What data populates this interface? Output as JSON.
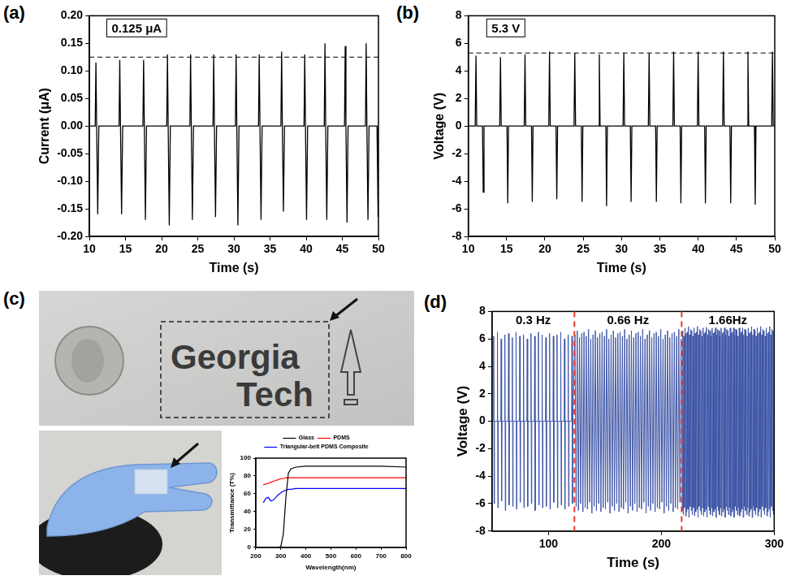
{
  "chart_data": [
    {
      "panel_label": "(a)",
      "type": "line",
      "color": "#000000",
      "x": [
        10,
        10.8,
        10.9,
        11.0,
        11.15,
        11.3,
        14.1,
        14.2,
        14.3,
        14.45,
        14.6,
        17.4,
        17.5,
        17.6,
        17.75,
        17.9,
        20.7,
        20.8,
        20.9,
        21.05,
        21.2,
        23.9,
        24.0,
        24.1,
        24.25,
        24.4,
        27.1,
        27.2,
        27.3,
        27.45,
        27.6,
        30.2,
        30.3,
        30.4,
        30.55,
        30.7,
        33.4,
        33.5,
        33.6,
        33.75,
        33.9,
        36.5,
        36.6,
        36.7,
        36.85,
        37.0,
        39.7,
        39.8,
        39.9,
        40.05,
        40.2,
        42.5,
        42.6,
        42.7,
        42.85,
        43.0,
        45.3,
        45.4,
        45.5,
        45.65,
        45.8,
        48.2,
        48.3,
        48.4,
        48.55,
        48.7,
        49.8,
        49.95,
        50
      ],
      "values": [
        0,
        0,
        0.115,
        0,
        -0.16,
        0,
        0,
        0.12,
        0,
        -0.16,
        0,
        0,
        0.12,
        0,
        -0.17,
        0,
        0,
        0.13,
        0,
        -0.18,
        0,
        0,
        0.13,
        0,
        -0.17,
        0,
        0,
        0.13,
        0,
        -0.165,
        0,
        0,
        0.13,
        0,
        -0.18,
        0,
        0,
        0.13,
        0,
        -0.17,
        0,
        0,
        0.135,
        0,
        -0.155,
        0,
        0,
        0.13,
        0,
        -0.17,
        0,
        0,
        0.15,
        0,
        -0.17,
        0,
        0,
        0.145,
        0,
        -0.175,
        0,
        0,
        0.15,
        0,
        -0.17,
        0,
        0,
        -0.165,
        0
      ],
      "xlim": [
        10,
        50
      ],
      "xticks": [
        10,
        15,
        20,
        25,
        30,
        35,
        40,
        45,
        50
      ],
      "ylim": [
        -0.2,
        0.2
      ],
      "yticks": [
        {
          "value": -0.2,
          "label": "-0.20"
        },
        -0.15,
        {
          "value": -0.1,
          "label": "-0.10"
        },
        -0.05,
        {
          "value": 0,
          "label": "0.00"
        },
        0.05,
        {
          "value": 0.1,
          "label": "0.10"
        },
        0.15,
        {
          "value": 0.2,
          "label": "0.20"
        }
      ],
      "x_label": "Time (s)",
      "y_label": "Current (μA)",
      "reference_line": {
        "value": 0.125,
        "label": "0.125 μA"
      }
    },
    {
      "panel_label": "(b)",
      "type": "line",
      "color": "#000000",
      "x": [
        10,
        10.9,
        11.0,
        11.1,
        11.85,
        11.95,
        12.05,
        14.1,
        14.2,
        14.3,
        15.05,
        15.15,
        15.25,
        17.3,
        17.4,
        17.5,
        18.25,
        18.35,
        18.45,
        20.5,
        20.6,
        20.7,
        21.45,
        21.55,
        21.65,
        23.8,
        23.9,
        24.0,
        24.75,
        24.85,
        24.95,
        27.0,
        27.1,
        27.2,
        27.95,
        28.05,
        28.15,
        30.2,
        30.3,
        30.4,
        31.15,
        31.25,
        31.35,
        33.5,
        33.6,
        33.7,
        34.45,
        34.55,
        34.65,
        36.7,
        36.8,
        36.9,
        37.65,
        37.75,
        37.85,
        39.9,
        40.0,
        40.1,
        40.85,
        40.95,
        41.05,
        43.2,
        43.3,
        43.4,
        44.15,
        44.25,
        44.35,
        46.4,
        46.5,
        46.6,
        47.35,
        47.45,
        47.55,
        49.6,
        49.7,
        49.8,
        50
      ],
      "values": [
        0,
        0,
        5.1,
        0,
        0,
        -4.8,
        0,
        0,
        5.0,
        0,
        0,
        -5.6,
        0,
        0,
        5.2,
        0,
        0,
        -5.5,
        0,
        0,
        5.4,
        0,
        0,
        -5.3,
        0,
        0,
        5.3,
        0,
        0,
        -5.5,
        0,
        0,
        5.2,
        0,
        0,
        -5.8,
        0,
        0,
        5.3,
        0,
        0,
        -5.5,
        0,
        0,
        5.3,
        0,
        0,
        -5.5,
        0,
        0,
        5.4,
        0,
        0,
        -5.6,
        0,
        0,
        5.4,
        0,
        0,
        -5.6,
        0,
        0,
        5.4,
        0,
        0,
        -5.6,
        0,
        0,
        5.4,
        0,
        0,
        -5.7,
        0,
        0,
        5.4,
        0,
        0
      ],
      "xlim": [
        10,
        50
      ],
      "xticks": [
        10,
        15,
        20,
        25,
        30,
        35,
        40,
        45,
        50
      ],
      "ylim": [
        -8,
        8
      ],
      "yticks": [
        -8,
        -6,
        -4,
        -2,
        0,
        2,
        4,
        6,
        8
      ],
      "x_label": "Time (s)",
      "y_label": "Voltage (V)",
      "reference_line": {
        "value": 5.3,
        "label": "5.3 V"
      }
    },
    {
      "panel_label": "(d)",
      "type": "line",
      "color": "#3e55a6",
      "x": [
        50,
        51.2,
        51.5,
        51.9,
        52.2,
        54.5,
        54.8,
        55.2,
        55.5,
        57.8,
        58.1,
        58.5,
        58.8,
        61.1,
        61.4,
        61.8,
        62.1,
        64.4,
        64.7,
        65.1,
        65.4,
        67.7,
        68.0,
        68.4,
        68.7,
        71.0,
        71.3,
        71.7,
        72.0,
        74.3,
        74.6,
        75.0,
        75.3,
        77.6,
        77.9,
        78.3,
        78.6,
        80.9,
        81.2,
        81.6,
        81.9,
        84.2,
        84.5,
        84.9,
        85.2,
        87.5,
        87.8,
        88.2,
        88.5,
        90.8,
        91.1,
        91.5,
        91.8,
        94.1,
        94.4,
        94.8,
        95.1,
        97.4,
        97.7,
        98.1,
        98.4,
        100.7,
        101.0,
        101.4,
        101.7,
        104.0,
        104.3,
        104.7,
        105.0,
        107.3,
        107.6,
        108.0,
        108.3,
        110.6,
        110.9,
        111.3,
        111.6,
        113.9,
        114.2,
        114.6,
        114.9,
        117.2,
        117.5,
        117.9,
        118.2,
        120.5,
        120.8,
        121.2,
        121.5,
        123.5,
        124.5,
        125.5,
        126.5,
        127.5,
        128.5,
        129.5,
        130.5,
        131.5,
        132.5,
        133.5,
        134.5,
        135.5,
        136.5,
        137.5,
        138.5,
        139.5,
        140.5,
        141.5,
        142.5,
        143.5,
        144.5,
        145.5,
        146.5,
        147.5,
        148.5,
        149.5,
        150.5,
        151.5,
        152.5,
        153.5,
        154.5,
        155.5,
        156.5,
        157.5,
        158.5,
        159.5,
        160.5,
        161.5,
        162.5,
        163.5,
        164.5,
        165.5,
        166.5,
        167.5,
        168.5,
        169.5,
        170.5,
        171.5,
        172.5,
        173.5,
        174.5,
        175.5,
        176.5,
        177.5,
        178.5,
        179.5,
        180.5,
        181.5,
        182.5,
        183.5,
        184.5,
        185.5,
        186.5,
        187.5,
        188.5,
        189.5,
        190.5,
        191.5,
        192.5,
        193.5,
        194.5,
        195.5,
        196.5,
        197.5,
        198.5,
        199.5,
        200.5,
        201.5,
        202.5,
        203.5,
        204.5,
        205.5,
        206.5,
        207.5,
        208.5,
        209.5,
        210.5,
        211.5,
        212.5,
        213.5,
        214.5,
        215.5,
        216.5,
        217.5,
        218.5,
        219,
        219.5,
        220,
        220.5,
        221,
        221.5,
        222,
        222.5,
        223,
        223.5,
        224,
        224.5,
        225,
        225.5,
        226,
        226.5,
        227,
        227.5,
        228,
        228.5,
        229,
        229.5,
        230,
        230.5,
        231,
        231.5,
        232,
        232.5,
        233,
        233.5,
        234,
        234.5,
        235,
        235.5,
        236,
        236.5,
        237,
        237.5,
        238,
        238.5,
        239,
        239.5,
        240,
        240.5,
        241,
        241.5,
        242,
        242.5,
        243,
        243.5,
        244,
        244.5,
        245,
        245.5,
        246,
        246.5,
        247,
        247.5,
        248,
        248.5,
        249,
        249.5,
        250,
        250.5,
        251,
        251.5,
        252,
        252.5,
        253,
        253.5,
        254,
        254.5,
        255,
        255.5,
        256,
        256.5,
        257,
        257.5,
        258,
        258.5,
        259,
        259.5,
        260,
        260.5,
        261,
        261.5,
        262,
        262.5,
        263,
        263.5,
        264,
        264.5,
        265,
        265.5,
        266,
        266.5,
        267,
        267.5,
        268,
        268.5,
        269,
        269.5,
        270,
        270.5,
        271,
        271.5,
        272,
        272.5,
        273,
        273.5,
        274,
        274.5,
        275,
        275.5,
        276,
        276.5,
        277,
        277.5,
        278,
        278.5,
        279,
        279.5,
        280,
        280.5,
        281,
        281.5,
        282,
        282.5,
        283,
        283.5,
        284,
        284.5,
        285,
        285.5,
        286,
        286.5,
        287,
        287.5,
        288,
        288.5,
        289,
        289.5,
        290,
        290.5,
        291,
        291.5,
        292,
        292.5,
        293,
        293.5,
        294,
        294.5,
        295,
        295.5,
        296,
        296.5,
        297,
        297.5,
        298,
        298.5,
        299,
        299.5
      ],
      "values": [
        0,
        0,
        6.2,
        -6.0,
        0,
        0,
        6.5,
        -6.3,
        0,
        0,
        6.0,
        -5.8,
        0,
        0,
        6.3,
        -6.5,
        0,
        0,
        6.4,
        -6.1,
        0,
        0,
        6.1,
        -6.2,
        0,
        0,
        6.5,
        -6.4,
        0,
        0,
        6.2,
        -5.9,
        0,
        0,
        6.3,
        -6.3,
        0,
        0,
        6.0,
        -6.2,
        0,
        0,
        6.4,
        -6.0,
        0,
        0,
        6.2,
        -6.5,
        0,
        0,
        6.5,
        -6.1,
        0,
        0,
        6.3,
        -6.3,
        0,
        0,
        6.1,
        -6.2,
        0,
        0,
        6.4,
        -6.4,
        0,
        0,
        6.2,
        -5.9,
        0,
        0,
        6.3,
        -6.3,
        0,
        0,
        6.5,
        -6.1,
        0,
        0,
        6.0,
        -6.4,
        0,
        0,
        6.3,
        -6.2,
        0,
        0,
        6.2,
        -6.0,
        0,
        6.3,
        -6.2,
        6.6,
        -6.5,
        6.1,
        -6.0,
        6.4,
        -6.6,
        6.5,
        -6.3,
        6.2,
        -6.4,
        6.7,
        -5.9,
        6.0,
        -6.7,
        6.3,
        -6.2,
        6.6,
        -6.5,
        6.1,
        -6.0,
        6.4,
        -6.6,
        6.5,
        -6.3,
        6.2,
        -6.4,
        6.7,
        -5.9,
        6.0,
        -6.7,
        6.3,
        -6.2,
        6.6,
        -6.5,
        6.1,
        -6.0,
        6.4,
        -6.6,
        6.5,
        -6.3,
        6.2,
        -6.4,
        6.7,
        -5.9,
        6.0,
        -6.7,
        6.3,
        -6.2,
        6.6,
        -6.5,
        6.1,
        -6.0,
        6.4,
        -6.6,
        6.5,
        -6.3,
        6.2,
        -6.4,
        6.7,
        -5.9,
        6.0,
        -6.7,
        6.3,
        -6.2,
        6.6,
        -6.5,
        6.1,
        -6.0,
        6.4,
        -6.6,
        6.5,
        -6.3,
        6.2,
        -6.4,
        6.7,
        -5.9,
        6.0,
        -6.7,
        6.3,
        -6.2,
        6.6,
        -6.5,
        6.1,
        -6.0,
        6.4,
        -6.6,
        6.5,
        -6.3,
        6.2,
        -6.4,
        6.7,
        -5.9,
        6.0,
        -6.5,
        6.6,
        -6.8,
        6.2,
        -6.3,
        6.8,
        -6.9,
        6.4,
        -6.6,
        6.5,
        -6.4,
        6.9,
        -7.0,
        6.3,
        -6.2,
        6.7,
        -6.5,
        6.6,
        -6.8,
        6.2,
        -6.3,
        6.8,
        -6.9,
        6.4,
        -6.6,
        6.5,
        -6.4,
        6.9,
        -7.0,
        6.3,
        -6.2,
        6.7,
        -6.5,
        6.6,
        -6.8,
        6.2,
        -6.3,
        6.8,
        -6.9,
        6.4,
        -6.6,
        6.5,
        -6.4,
        6.9,
        -7.0,
        6.3,
        -6.2,
        6.7,
        -6.5,
        6.6,
        -6.8,
        6.2,
        -6.3,
        6.8,
        -6.9,
        6.4,
        -6.6,
        6.5,
        -6.4,
        6.9,
        -7.0,
        6.3,
        -6.2,
        6.7,
        -6.5,
        6.6,
        -6.8,
        6.2,
        -6.3,
        6.8,
        -6.9,
        6.4,
        -6.6,
        6.5,
        -6.4,
        6.9,
        -7.0,
        6.3,
        -6.2,
        6.7,
        -6.5,
        6.6,
        -6.8,
        6.2,
        -6.3,
        6.8,
        -6.9,
        6.4,
        -6.6,
        6.5,
        -6.4,
        6.9,
        -7.0,
        6.3,
        -6.2,
        6.7,
        -6.5,
        6.6,
        -6.8,
        6.2,
        -6.3,
        6.8,
        -6.9,
        6.4,
        -6.6,
        6.5,
        -6.4,
        6.9,
        -7.0,
        6.3,
        -6.2,
        6.7,
        -6.5,
        6.6,
        -6.8,
        6.2,
        -6.3,
        6.8,
        -6.9,
        6.4,
        -6.6,
        6.5,
        -6.4,
        6.9,
        -7.0,
        6.3,
        -6.2,
        6.7,
        -6.5,
        6.6,
        -6.8,
        6.2,
        -6.3,
        6.8,
        -6.9,
        6.4,
        -6.6,
        6.5,
        -6.4,
        6.9,
        -7.0,
        6.3,
        -6.2,
        6.7,
        -6.5,
        6.6,
        -6.8,
        6.2,
        -6.3,
        6.8,
        -6.9,
        6.4,
        -6.6,
        6.5,
        -6.4,
        6.9,
        -7.0,
        6.3,
        -6.2,
        6.7,
        -6.5,
        6.6,
        -6.8
      ],
      "xlim": [
        50,
        300
      ],
      "xticks": [
        100,
        200,
        300
      ],
      "ylim": [
        -8,
        8
      ],
      "yticks": [
        -8,
        -6,
        -4,
        -2,
        0,
        2,
        4,
        6,
        8
      ],
      "x_label": "Time (s)",
      "y_label": "Voltage (V)",
      "dividers": [
        123,
        218
      ],
      "region_labels": [
        "0.3 Hz",
        "0.66 Hz",
        "1.66Hz"
      ]
    },
    {
      "type": "line",
      "x": [
        230,
        240,
        250,
        260,
        270,
        280,
        290,
        300,
        310,
        320,
        330,
        340,
        360,
        400,
        500,
        600,
        700,
        800
      ],
      "series": [
        {
          "name": "Glass",
          "color": "#000000",
          "values": [
            0,
            0,
            0,
            0,
            0,
            0,
            0,
            1,
            15,
            55,
            83,
            88,
            90,
            91,
            91,
            91,
            91,
            90
          ]
        },
        {
          "name": "PDMS",
          "color": "#ff0000",
          "values": [
            70,
            71,
            72,
            73,
            74,
            75,
            76,
            77,
            77,
            78,
            78,
            78,
            78,
            78,
            78,
            78,
            78,
            78
          ]
        },
        {
          "name": "Triangular-belt PDMS Composite",
          "color": "#0000ff",
          "values": [
            50,
            55,
            56,
            52,
            53,
            56,
            59,
            61,
            63,
            64,
            65,
            65,
            66,
            66,
            66,
            66,
            66,
            66
          ]
        }
      ],
      "xlim": [
        200,
        800
      ],
      "xticks": [
        200,
        300,
        400,
        500,
        600,
        700,
        800
      ],
      "ylim": [
        0,
        100
      ],
      "yticks": [
        0,
        20,
        40,
        60,
        80,
        100
      ],
      "x_label": "Wavelength(nm)",
      "y_label": "Transmittance (T%)",
      "legend": "top"
    }
  ],
  "photo": {
    "panel_label": "(c)",
    "text": [
      "Georgia",
      "Tech"
    ]
  }
}
